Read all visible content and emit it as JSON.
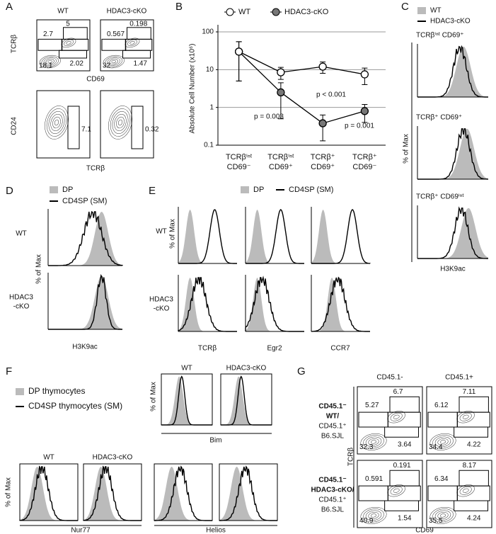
{
  "panel_labels": [
    "A",
    "B",
    "C",
    "D",
    "E",
    "F",
    "G"
  ],
  "panel_a": {
    "columns": [
      "WT",
      "HDAC3-cKO"
    ],
    "top": {
      "y_label": "TCRβ",
      "x_label": "CD69",
      "gates": [
        [
          "2.7",
          "5",
          "18.1",
          "2.02"
        ],
        [
          "0.567",
          "0.198",
          "32",
          "1.47"
        ]
      ]
    },
    "bottom": {
      "y_label": "CD24",
      "x_label": "TCRβ",
      "gates": [
        [
          "7.1"
        ],
        [
          "0.32"
        ]
      ]
    }
  },
  "chart_data": {
    "type": "line",
    "y_label": "Absolute Cell Number (x10⁶)",
    "categories": [
      [
        "TCRβⁱⁿᵗ",
        "CD69⁻"
      ],
      [
        "TCRβⁱⁿᵗ",
        "CD69⁺"
      ],
      [
        "TCRβ⁺",
        "CD69⁺"
      ],
      [
        "TCRβ⁺",
        "CD69⁻"
      ]
    ],
    "series": [
      {
        "name": "WT",
        "color": "#ffffff",
        "values": [
          30,
          8.5,
          12,
          7.5
        ],
        "errors": [
          25,
          3,
          4,
          3.5
        ]
      },
      {
        "name": "HDAC3-cKO",
        "color": "#777777",
        "values": [
          30,
          2.5,
          0.38,
          0.8
        ],
        "errors": [
          25,
          2,
          0.25,
          0.4
        ]
      }
    ],
    "ylim": [
      0.1,
      100
    ],
    "yticks": [
      0.1,
      1,
      10,
      100
    ],
    "log_scale": true,
    "grid": true,
    "annotations": [
      "p = 0.003",
      "p < 0.001",
      "p = 0.001"
    ]
  },
  "panel_c": {
    "legend": [
      "WT",
      "HDAC3-cKO"
    ],
    "titles": [
      "TCRβⁱⁿᵗ CD69⁺",
      "TCRβ⁺ CD69⁺",
      "TCRβ⁺ CD69ⁱⁿᵗ"
    ],
    "y_label": "% of Max",
    "x_label": "H3K9ac"
  },
  "panel_d": {
    "legend": [
      "DP",
      "CD4SP (SM)"
    ],
    "rows": [
      [
        "WT"
      ],
      [
        "HDAC3",
        "-cKO"
      ]
    ],
    "y_label": "% of Max",
    "x_label": "H3K9ac"
  },
  "panel_e": {
    "legend": [
      "DP",
      "CD4SP (SM)"
    ],
    "rows": [
      [
        "WT"
      ],
      [
        "HDAC3",
        "-cKO"
      ]
    ],
    "y_label": "% of Max",
    "x_labels": [
      "TCRβ",
      "Egr2",
      "CCR7"
    ]
  },
  "panel_f": {
    "legend": [
      "DP thymocytes",
      "CD4SP thymocytes (SM)"
    ],
    "columns": [
      "WT",
      "HDAC3-cKO"
    ],
    "y_label": "% of Max",
    "x_labels": [
      "Bim",
      "Nur77",
      "Helios"
    ]
  },
  "panel_g": {
    "columns": [
      "CD45.1-",
      "CD45.1+"
    ],
    "rows": [
      [
        "CD45.1⁻",
        "WT/",
        "CD45.1⁺",
        "B6.SJL"
      ],
      [
        "CD45.1⁻",
        "HDAC3-cKO/",
        "CD45.1⁺",
        "B6.SJL"
      ]
    ],
    "y_label": "TCRβ",
    "x_label": "CD69",
    "gates": [
      [
        [
          "5.27",
          "6.7",
          "32.3",
          "3.64"
        ],
        [
          "6.12",
          "7.11",
          "34.4",
          "4.22"
        ]
      ],
      [
        [
          "0.591",
          "0.191",
          "40.9",
          "1.54"
        ],
        [
          "6.34",
          "8.17",
          "35.5",
          "4.24"
        ]
      ]
    ]
  }
}
